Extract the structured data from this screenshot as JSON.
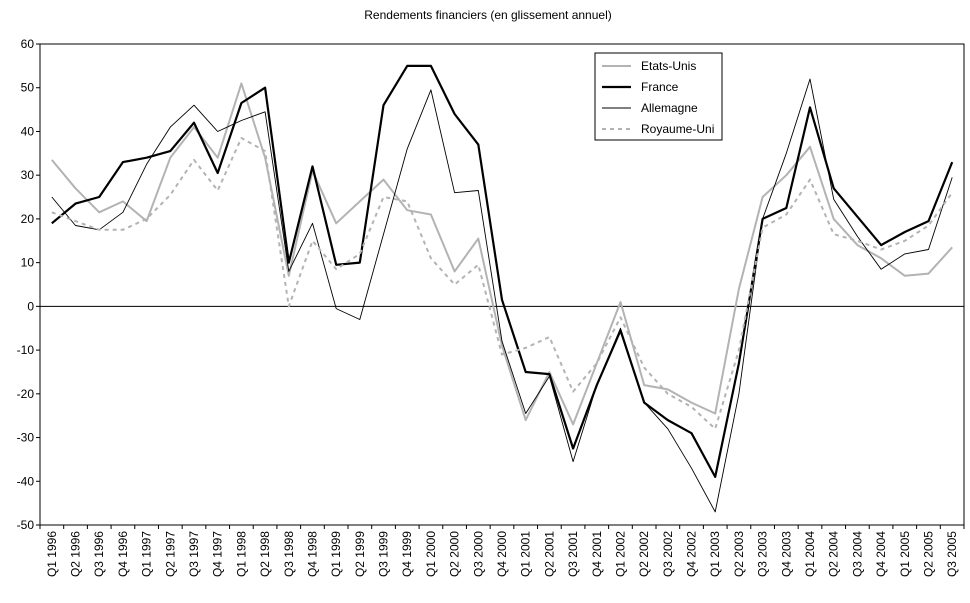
{
  "chart_data": {
    "type": "line",
    "title": "Rendements financiers (en glissement annuel)",
    "xlabel": "",
    "ylabel": "",
    "ylim": [
      -50,
      60
    ],
    "yticks": [
      60,
      50,
      40,
      30,
      20,
      10,
      0,
      -10,
      -20,
      -30,
      -40,
      -50
    ],
    "legend_position": "top-right",
    "categories": [
      "Q1 1996",
      "Q2 1996",
      "Q3 1996",
      "Q4 1996",
      "Q1 1997",
      "Q2 1997",
      "Q3 1997",
      "Q4 1997",
      "Q1 1998",
      "Q2 1998",
      "Q3 1998",
      "Q4 1998",
      "Q1 1999",
      "Q2 1999",
      "Q3 1999",
      "Q4 1999",
      "Q1 2000",
      "Q2 2000",
      "Q3 2000",
      "Q4 2000",
      "Q1 2001",
      "Q2 2001",
      "Q3 2001",
      "Q4 2001",
      "Q1 2002",
      "Q2 2002",
      "Q3 2002",
      "Q4 2002",
      "Q1 2003",
      "Q2 2003",
      "Q3 2003",
      "Q4 2003",
      "Q1 2004",
      "Q2 2004",
      "Q3 2004",
      "Q4 2004",
      "Q1 2005",
      "Q2 2005",
      "Q3 2005"
    ],
    "series": [
      {
        "name": "Etats-Unis",
        "color": "#b3b3b3",
        "dash": "solid",
        "width": 2,
        "values": [
          33.5,
          27,
          21.5,
          24,
          19.5,
          34,
          41,
          34,
          51,
          34,
          7,
          31,
          19,
          24,
          29,
          22,
          21,
          8,
          15.5,
          -9,
          -26,
          -15,
          -27,
          -13,
          1,
          -18,
          -19,
          -22,
          -24.5,
          4,
          25,
          30,
          36.5,
          20,
          14,
          11,
          7,
          7.5,
          13.5
        ]
      },
      {
        "name": "France",
        "color": "#000000",
        "dash": "solid",
        "width": 2.2,
        "values": [
          19,
          23.5,
          25,
          33,
          34,
          35.5,
          42,
          30.5,
          46.5,
          50,
          10,
          32,
          9.5,
          10,
          46,
          55,
          55,
          44,
          37,
          1.5,
          -15,
          -15.5,
          -32.5,
          -18,
          -5.5,
          -22,
          -26,
          -29,
          -39,
          -13,
          20,
          22.5,
          45.5,
          27,
          20.5,
          14,
          17,
          19.5,
          33
        ]
      },
      {
        "name": "Allemagne",
        "color": "#000000",
        "dash": "solid",
        "width": 0.9,
        "values": [
          25,
          18.5,
          17.5,
          21.5,
          32.5,
          41,
          46,
          40,
          42.5,
          44.5,
          8,
          19,
          -0.5,
          -3,
          16.5,
          36,
          49.5,
          26,
          26.5,
          -8,
          -24.5,
          -16,
          -35.5,
          -18,
          -5,
          -22,
          -28,
          -37,
          -47,
          -20,
          20,
          35,
          52,
          24.5,
          16,
          8.5,
          12,
          13,
          29.5
        ]
      },
      {
        "name": "Royaume-Uni",
        "color": "#b3b3b3",
        "dash": "dashed",
        "width": 2,
        "values": [
          21.5,
          19.5,
          17.5,
          17.5,
          20,
          25.5,
          33.5,
          26.5,
          38.5,
          35.5,
          0,
          15,
          8.5,
          12,
          25,
          24,
          11,
          5,
          9.5,
          -11,
          -9.5,
          -7,
          -19.5,
          -13,
          -2.5,
          -14,
          -20,
          -23,
          -28,
          -10,
          18,
          21,
          29,
          16.5,
          15,
          13,
          15,
          18.5,
          26
        ]
      }
    ]
  }
}
